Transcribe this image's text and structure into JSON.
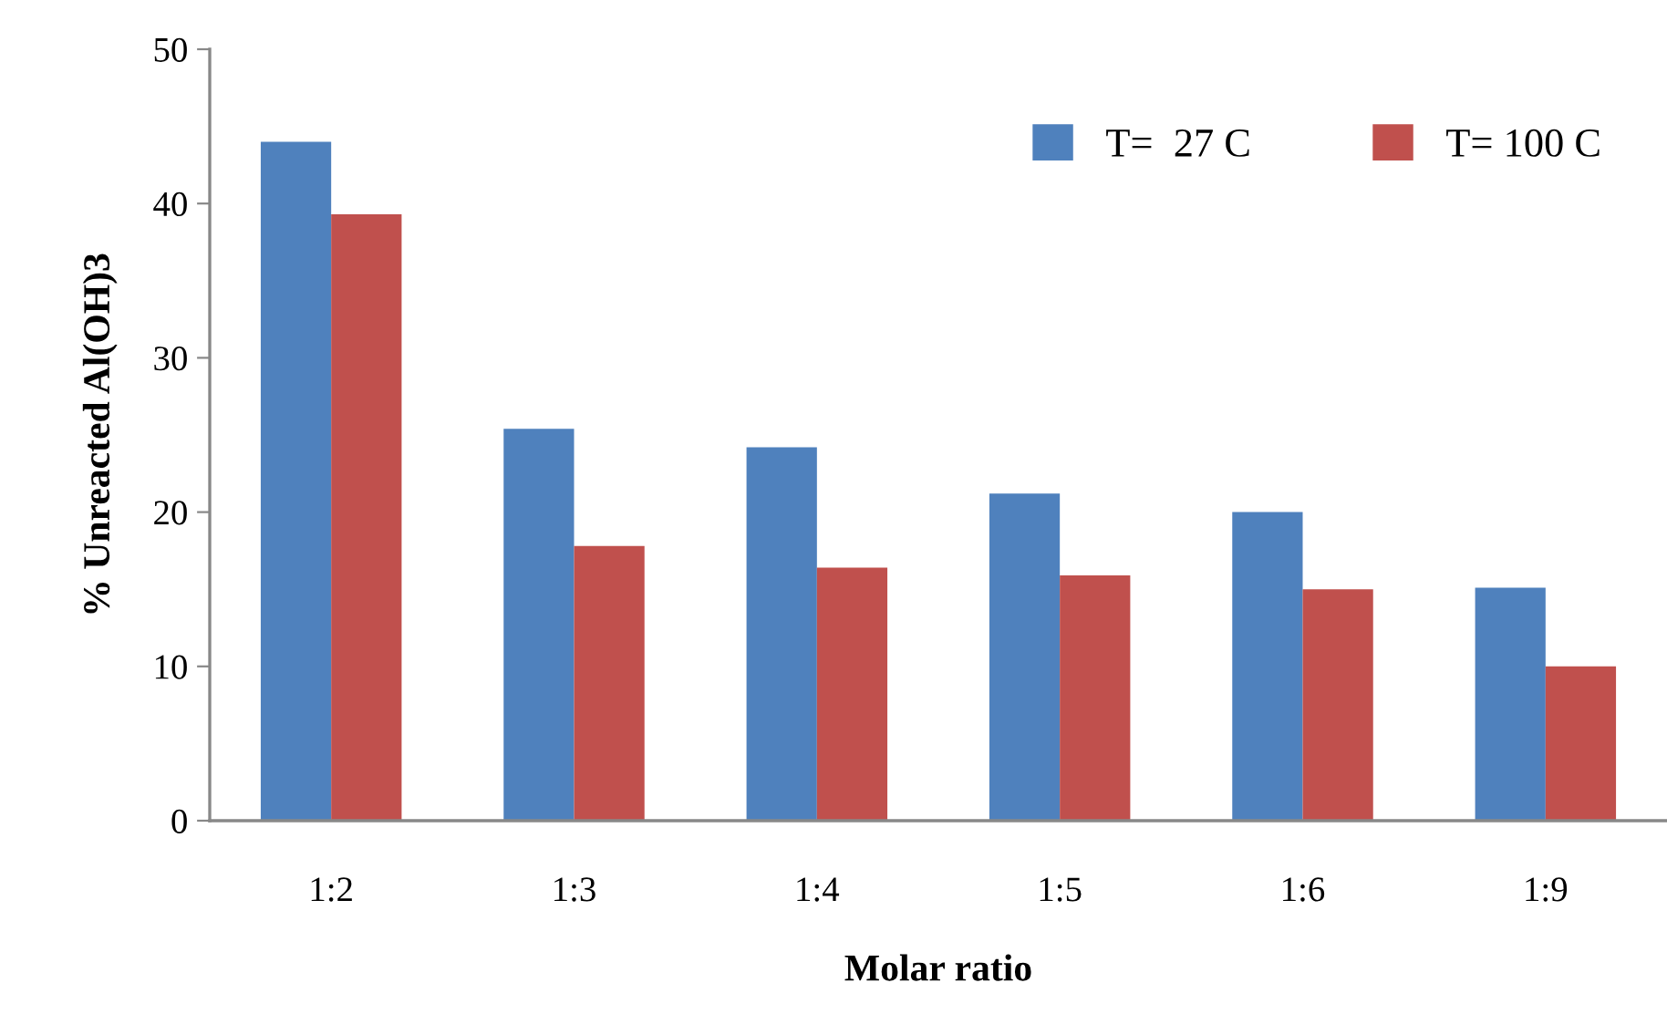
{
  "chart_data": {
    "type": "bar",
    "xlabel": "Molar ratio",
    "ylabel": "% Unreacted Al(OH)3",
    "categories": [
      "1:2",
      "1:3",
      "1:4",
      "1:5",
      "1:6",
      "1:9"
    ],
    "series": [
      {
        "name": "T=  27 C",
        "color": "#4f81bd",
        "values": [
          44.0,
          25.4,
          24.2,
          21.2,
          20.0,
          15.1
        ]
      },
      {
        "name": "T= 100 C",
        "color": "#c0504d",
        "values": [
          39.3,
          17.8,
          16.4,
          15.9,
          15.0,
          10.0
        ]
      }
    ],
    "ylim": [
      0,
      50
    ],
    "yticks": [
      0,
      10,
      20,
      30,
      40,
      50
    ],
    "grid": false,
    "legend": "top right"
  }
}
